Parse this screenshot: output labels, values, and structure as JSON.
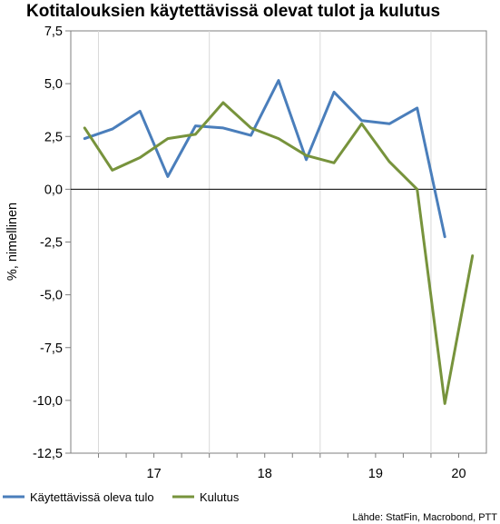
{
  "chart_data": {
    "type": "line",
    "title": "Kotitalouksien käytettävissä olevat tulot ja kulutus",
    "ylabel": "%, nimellinen",
    "xlabel": "",
    "ylim": [
      -12.5,
      7.5
    ],
    "yticks": [
      "7,5",
      "5,0",
      "2,5",
      "0,0",
      "-2,5",
      "-5,0",
      "-7,5",
      "-10,0",
      "-12,5"
    ],
    "ytick_values": [
      7.5,
      5.0,
      2.5,
      0.0,
      -2.5,
      -5.0,
      -7.5,
      -10.0,
      -12.5
    ],
    "year_labels": [
      "17",
      "18",
      "19",
      "20"
    ],
    "x": [
      "2016Q4",
      "2017Q1",
      "2017Q2",
      "2017Q3",
      "2017Q4",
      "2018Q1",
      "2018Q2",
      "2018Q3",
      "2018Q4",
      "2019Q1",
      "2019Q2",
      "2019Q3",
      "2019Q4",
      "2020Q1",
      "2020Q2"
    ],
    "grid": "vertical at year boundaries",
    "zero_line": true,
    "legend_position": "bottom",
    "series": [
      {
        "name": "Käytettävissä oleva tulo",
        "color": "#4a7ebb",
        "values": [
          2.4,
          2.85,
          3.7,
          0.6,
          3.0,
          2.9,
          2.55,
          5.15,
          1.4,
          4.6,
          3.25,
          3.1,
          3.85,
          -2.25,
          null
        ]
      },
      {
        "name": "Kulutus",
        "color": "#77933c",
        "values": [
          2.9,
          0.9,
          1.5,
          2.4,
          2.6,
          4.1,
          2.9,
          2.4,
          1.6,
          1.25,
          3.1,
          1.3,
          0.0,
          -10.15,
          -3.15
        ]
      }
    ],
    "source": "Lähde: StatFin, Macrobond, PTT"
  }
}
